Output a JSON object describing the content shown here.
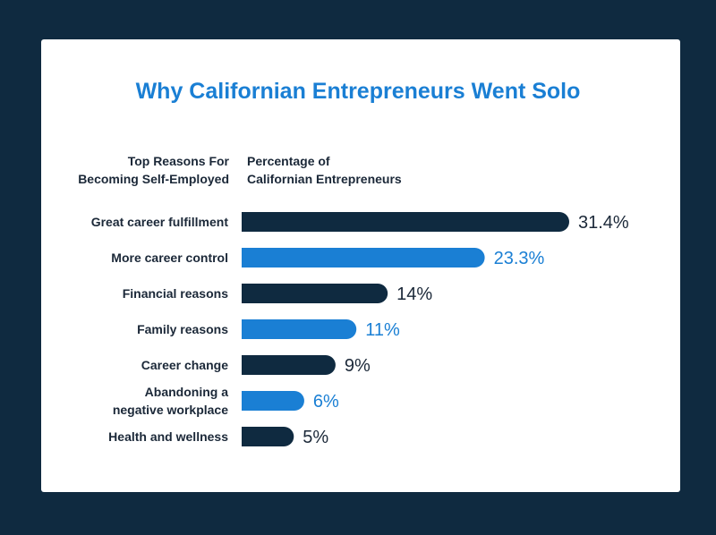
{
  "colors": {
    "background": "#0f2a40",
    "dark_bar": "#0f2a40",
    "blue_bar": "#1a7fd4",
    "title": "#1a7fd4",
    "text": "#1b2838"
  },
  "chart_data": {
    "type": "bar",
    "orientation": "horizontal",
    "title": "Why Californian Entrepreneurs Went Solo",
    "category_header": [
      "Top Reasons For",
      "Becoming Self-Employed"
    ],
    "value_header": [
      "Percentage of",
      "Californian Entrepreneurs"
    ],
    "categories": [
      [
        "Great career fulfillment"
      ],
      [
        "More career control"
      ],
      [
        "Financial reasons"
      ],
      [
        "Family reasons"
      ],
      [
        "Career change"
      ],
      [
        "Abandoning a",
        "negative workplace"
      ],
      [
        "Health and wellness"
      ]
    ],
    "values": [
      31.4,
      23.3,
      14,
      11,
      9,
      6,
      5
    ],
    "value_labels": [
      "31.4%",
      "23.3%",
      "14%",
      "11%",
      "9%",
      "6%",
      "5%"
    ],
    "bar_colors": [
      "dark",
      "blue",
      "dark",
      "blue",
      "dark",
      "blue",
      "dark"
    ],
    "xlim": [
      0,
      31.4
    ]
  }
}
